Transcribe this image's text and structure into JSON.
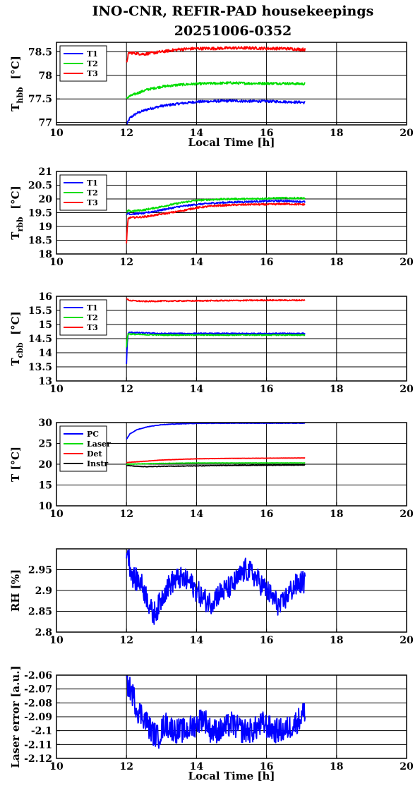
{
  "title": {
    "line1": "INO-CNR, REFIR-PAD housekeepings",
    "line2": "20251006-0352"
  },
  "colors": {
    "blue": "#0000ff",
    "green": "#00dd00",
    "red": "#ff0000",
    "black": "#000000"
  },
  "chart_data": [
    {
      "type": "line",
      "ylabel_main": "T",
      "ylabel_sub": "hbb",
      "ylabel_unit": "[°C]",
      "xlabel": "Local Time [h]",
      "xlim": [
        10,
        20
      ],
      "ylim": [
        76.95,
        78.7
      ],
      "xticks": [
        10,
        12,
        14,
        16,
        18,
        20
      ],
      "yticks": [
        77,
        77.5,
        78,
        78.5
      ],
      "ytick_labels": [
        "77",
        "77.5",
        "78",
        "78.5"
      ],
      "grid": true,
      "legend": "top-left",
      "series": [
        {
          "name": "T1",
          "color": "#0000ff",
          "x": [
            12.0,
            12.1,
            12.3,
            12.6,
            13.0,
            13.5,
            14.0,
            14.5,
            15.0,
            15.5,
            16.0,
            16.5,
            17.0,
            17.1
          ],
          "y": [
            76.95,
            77.1,
            77.2,
            77.28,
            77.35,
            77.4,
            77.44,
            77.45,
            77.46,
            77.45,
            77.45,
            77.44,
            77.43,
            77.42
          ],
          "noise": 0.025
        },
        {
          "name": "T2",
          "color": "#00dd00",
          "x": [
            12.0,
            12.1,
            12.3,
            12.6,
            13.0,
            13.5,
            14.0,
            14.5,
            15.0,
            15.5,
            16.0,
            16.5,
            17.0,
            17.1
          ],
          "y": [
            77.52,
            77.56,
            77.62,
            77.7,
            77.76,
            77.8,
            77.82,
            77.83,
            77.84,
            77.83,
            77.83,
            77.83,
            77.82,
            77.82
          ],
          "noise": 0.025
        },
        {
          "name": "T3",
          "color": "#ff0000",
          "x": [
            12.0,
            12.05,
            12.1,
            12.5,
            13.0,
            13.5,
            14.0,
            14.5,
            15.0,
            15.5,
            16.0,
            16.5,
            17.0,
            17.1
          ],
          "y": [
            78.25,
            78.45,
            78.48,
            78.45,
            78.5,
            78.55,
            78.57,
            78.57,
            78.58,
            78.58,
            78.57,
            78.57,
            78.55,
            78.55
          ],
          "noise": 0.03
        }
      ]
    },
    {
      "type": "line",
      "ylabel_main": "T",
      "ylabel_sub": "rbb",
      "ylabel_unit": "[°C]",
      "xlabel": "",
      "xlim": [
        10,
        20
      ],
      "ylim": [
        18,
        21
      ],
      "xticks": [
        10,
        12,
        14,
        16,
        18,
        20
      ],
      "yticks": [
        18,
        18.5,
        19,
        19.5,
        20,
        20.5,
        21
      ],
      "ytick_labels": [
        "18",
        "18.5",
        "19",
        "19.5",
        "20",
        "20.5",
        "21"
      ],
      "grid": true,
      "legend": "top-left",
      "series": [
        {
          "name": "T1",
          "color": "#0000ff",
          "x": [
            12.0,
            12.05,
            12.1,
            12.5,
            13.0,
            13.5,
            14.0,
            14.5,
            15.0,
            15.5,
            16.0,
            16.5,
            17.0,
            17.1
          ],
          "y": [
            19.4,
            19.5,
            19.45,
            19.48,
            19.6,
            19.72,
            19.8,
            19.85,
            19.88,
            19.9,
            19.92,
            19.93,
            19.9,
            19.9
          ],
          "noise": 0.03
        },
        {
          "name": "T2",
          "color": "#00dd00",
          "x": [
            12.0,
            12.05,
            12.1,
            12.5,
            13.0,
            13.5,
            14.0,
            14.5,
            15.0,
            15.5,
            16.0,
            16.5,
            17.0,
            17.1
          ],
          "y": [
            19.5,
            19.58,
            19.55,
            19.6,
            19.72,
            19.85,
            19.95,
            19.98,
            20.0,
            20.0,
            20.02,
            20.03,
            20.03,
            20.02
          ],
          "noise": 0.03
        },
        {
          "name": "T3",
          "color": "#ff0000",
          "x": [
            12.0,
            12.02,
            12.05,
            12.1,
            12.5,
            13.0,
            13.5,
            14.0,
            14.5,
            15.0,
            15.5,
            16.0,
            16.5,
            17.0,
            17.1
          ],
          "y": [
            18.35,
            18.9,
            19.3,
            19.32,
            19.35,
            19.45,
            19.55,
            19.68,
            19.75,
            19.78,
            19.8,
            19.8,
            19.82,
            19.8,
            19.8
          ],
          "noise": 0.03
        }
      ]
    },
    {
      "type": "line",
      "ylabel_main": "T",
      "ylabel_sub": "cbb",
      "ylabel_unit": "[°C]",
      "xlabel": "",
      "xlim": [
        10,
        20
      ],
      "ylim": [
        13,
        16
      ],
      "xticks": [
        10,
        12,
        14,
        16,
        18,
        20
      ],
      "yticks": [
        13,
        13.5,
        14,
        14.5,
        15,
        15.5,
        16
      ],
      "ytick_labels": [
        "13",
        "13.5",
        "14",
        "14.5",
        "15",
        "15.5",
        "16"
      ],
      "grid": true,
      "legend": "top-left",
      "series": [
        {
          "name": "T1",
          "color": "#0000ff",
          "x": [
            12.0,
            12.02,
            12.05,
            12.1,
            12.5,
            13.0,
            14.0,
            15.0,
            16.0,
            17.0,
            17.1
          ],
          "y": [
            13.6,
            14.3,
            14.7,
            14.72,
            14.7,
            14.68,
            14.68,
            14.68,
            14.68,
            14.68,
            14.68
          ],
          "noise": 0.02
        },
        {
          "name": "T2",
          "color": "#00dd00",
          "x": [
            12.0,
            12.02,
            12.05,
            12.1,
            12.5,
            13.0,
            14.0,
            15.0,
            16.0,
            17.0,
            17.1
          ],
          "y": [
            14.2,
            14.5,
            14.68,
            14.66,
            14.64,
            14.63,
            14.63,
            14.63,
            14.63,
            14.63,
            14.63
          ],
          "noise": 0.02
        },
        {
          "name": "T3",
          "color": "#ff0000",
          "x": [
            12.0,
            12.1,
            12.5,
            13.0,
            14.0,
            15.0,
            16.0,
            17.0,
            17.1
          ],
          "y": [
            15.9,
            15.85,
            15.82,
            15.83,
            15.84,
            15.85,
            15.86,
            15.86,
            15.86
          ],
          "noise": 0.02
        }
      ]
    },
    {
      "type": "line",
      "ylabel_main": "T [°C]",
      "ylabel_sub": "",
      "ylabel_unit": "",
      "xlabel": "",
      "xlim": [
        10,
        20
      ],
      "ylim": [
        10,
        30
      ],
      "xticks": [
        10,
        12,
        14,
        16,
        18,
        20
      ],
      "yticks": [
        10,
        15,
        20,
        25,
        30
      ],
      "ytick_labels": [
        "10",
        "15",
        "20",
        "25",
        "30"
      ],
      "grid": true,
      "legend": "top-left",
      "series": [
        {
          "name": "PC",
          "color": "#0000ff",
          "x": [
            12.0,
            12.1,
            12.3,
            12.6,
            13.0,
            13.5,
            14.0,
            15.0,
            16.0,
            17.0,
            17.1
          ],
          "y": [
            26.0,
            27.3,
            28.3,
            29.0,
            29.5,
            29.7,
            29.8,
            29.85,
            29.85,
            29.85,
            29.85
          ],
          "noise": 0.05
        },
        {
          "name": "Laser",
          "color": "#00dd00",
          "x": [
            12.0,
            12.5,
            13.0,
            14.0,
            15.0,
            16.0,
            17.0,
            17.1
          ],
          "y": [
            20.0,
            20.1,
            20.2,
            20.3,
            20.3,
            20.3,
            20.3,
            20.3
          ],
          "noise": 0.04
        },
        {
          "name": "Det",
          "color": "#ff0000",
          "x": [
            12.0,
            12.5,
            13.0,
            14.0,
            15.0,
            16.0,
            17.0,
            17.1
          ],
          "y": [
            20.4,
            20.7,
            21.0,
            21.3,
            21.4,
            21.45,
            21.5,
            21.5
          ],
          "noise": 0.03
        },
        {
          "name": "Instr",
          "color": "#000000",
          "x": [
            12.0,
            12.3,
            12.6,
            13.0,
            14.0,
            15.0,
            16.0,
            17.0,
            17.1
          ],
          "y": [
            19.7,
            19.5,
            19.4,
            19.5,
            19.6,
            19.7,
            19.75,
            19.8,
            19.8
          ],
          "noise": 0.06
        }
      ]
    },
    {
      "type": "line",
      "ylabel_main": "RH [%]",
      "ylabel_sub": "",
      "ylabel_unit": "",
      "xlabel": "",
      "xlim": [
        10,
        20
      ],
      "ylim": [
        2.8,
        3.0
      ],
      "xticks": [
        10,
        12,
        14,
        16,
        18,
        20
      ],
      "yticks": [
        2.8,
        2.85,
        2.9,
        2.95
      ],
      "ytick_labels": [
        "2.8",
        "2.85",
        "2.9",
        "2.95"
      ],
      "grid": true,
      "legend": "none",
      "series": [
        {
          "name": "",
          "color": "#0000ff",
          "x": [
            12.0,
            12.05,
            12.1,
            12.2,
            12.4,
            12.6,
            12.75,
            12.9,
            13.1,
            13.3,
            13.5,
            13.8,
            14.0,
            14.2,
            14.4,
            14.6,
            14.8,
            15.0,
            15.2,
            15.4,
            15.6,
            15.8,
            16.0,
            16.2,
            16.4,
            16.6,
            16.8,
            17.0,
            17.1
          ],
          "y": [
            3.0,
            2.99,
            2.96,
            2.93,
            2.92,
            2.88,
            2.84,
            2.86,
            2.9,
            2.92,
            2.93,
            2.92,
            2.9,
            2.88,
            2.87,
            2.89,
            2.9,
            2.91,
            2.93,
            2.95,
            2.94,
            2.92,
            2.9,
            2.88,
            2.86,
            2.89,
            2.91,
            2.92,
            2.92
          ],
          "noise": 0.028
        }
      ]
    },
    {
      "type": "line",
      "ylabel_main": "Laser error [a.u.]",
      "ylabel_sub": "",
      "ylabel_unit": "",
      "xlabel": "Local Time [h]",
      "xlim": [
        10,
        20
      ],
      "ylim": [
        -2.12,
        -2.06
      ],
      "xticks": [
        10,
        12,
        14,
        16,
        18,
        20
      ],
      "yticks": [
        -2.12,
        -2.11,
        -2.1,
        -2.09,
        -2.08,
        -2.07,
        -2.06
      ],
      "ytick_labels": [
        "-2.12",
        "-2.11",
        "-2.1",
        "-2.09",
        "-2.08",
        "-2.07",
        "-2.06"
      ],
      "grid": true,
      "legend": "none",
      "series": [
        {
          "name": "",
          "color": "#0000ff",
          "x": [
            12.0,
            12.1,
            12.2,
            12.3,
            12.5,
            12.7,
            12.9,
            13.1,
            13.4,
            13.7,
            14.0,
            14.2,
            14.4,
            14.7,
            15.0,
            15.3,
            15.6,
            15.9,
            16.2,
            16.5,
            16.8,
            17.0,
            17.1
          ],
          "y": [
            -2.065,
            -2.07,
            -2.075,
            -2.085,
            -2.09,
            -2.1,
            -2.105,
            -2.095,
            -2.1,
            -2.1,
            -2.095,
            -2.09,
            -2.1,
            -2.1,
            -2.095,
            -2.1,
            -2.1,
            -2.095,
            -2.1,
            -2.1,
            -2.095,
            -2.09,
            -2.085
          ],
          "noise": 0.009
        }
      ]
    }
  ]
}
